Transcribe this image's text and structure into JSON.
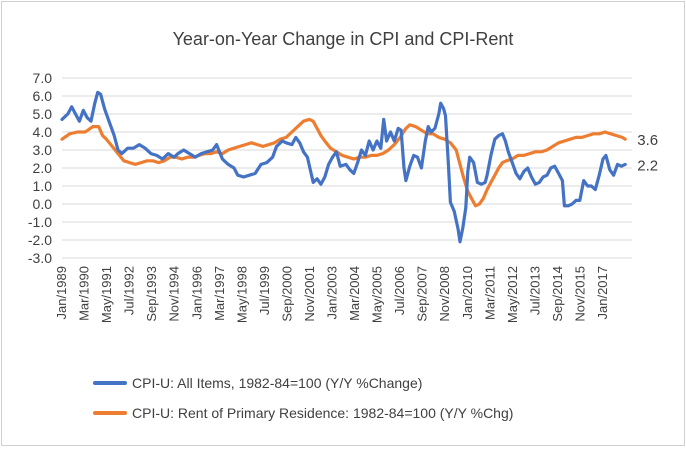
{
  "chart_data": {
    "type": "line",
    "title": "Year-on-Year Change in CPI and CPI-Rent",
    "xlabel": "",
    "ylabel": "",
    "ylim": [
      -3.0,
      7.0
    ],
    "yticks": [
      "7.0",
      "6.0",
      "5.0",
      "4.0",
      "3.0",
      "2.0",
      "1.0",
      "0.0",
      "-1.0",
      "-2.0",
      "-3.0"
    ],
    "xlim": [
      1989.0,
      2018.5
    ],
    "xticks": [
      {
        "label": "Jan/1989",
        "t": 1989.0
      },
      {
        "label": "Mar/1990",
        "t": 1990.17
      },
      {
        "label": "May/1991",
        "t": 1991.33
      },
      {
        "label": "Jul/1992",
        "t": 1992.5
      },
      {
        "label": "Sep/1993",
        "t": 1993.67
      },
      {
        "label": "Nov/1994",
        "t": 1994.83
      },
      {
        "label": "Jan/1996",
        "t": 1996.0
      },
      {
        "label": "Mar/1997",
        "t": 1997.17
      },
      {
        "label": "May/1998",
        "t": 1998.33
      },
      {
        "label": "Jul/1999",
        "t": 1999.5
      },
      {
        "label": "Sep/2000",
        "t": 2000.67
      },
      {
        "label": "Nov/2001",
        "t": 2001.83
      },
      {
        "label": "Jan/2003",
        "t": 2003.0
      },
      {
        "label": "Mar/2004",
        "t": 2004.17
      },
      {
        "label": "May/2005",
        "t": 2005.33
      },
      {
        "label": "Jul/2006",
        "t": 2006.5
      },
      {
        "label": "Sep/2007",
        "t": 2007.67
      },
      {
        "label": "Nov/2008",
        "t": 2008.83
      },
      {
        "label": "Jan/2010",
        "t": 2010.0
      },
      {
        "label": "Mar/2011",
        "t": 2011.17
      },
      {
        "label": "May/2012",
        "t": 2012.33
      },
      {
        "label": "Jul/2013",
        "t": 2013.5
      },
      {
        "label": "Sep/2014",
        "t": 2014.67
      },
      {
        "label": "Nov/2015",
        "t": 2015.83
      },
      {
        "label": "Jan/2017",
        "t": 2017.0
      }
    ],
    "grid": true,
    "legend_position": "bottom",
    "series": [
      {
        "name": "CPI-U: All Items, 1982-84=100 (Y/Y %Change)",
        "color": "#4472C4",
        "end_label": "2.2",
        "points": [
          [
            1989.0,
            4.7
          ],
          [
            1989.3,
            5.0
          ],
          [
            1989.5,
            5.4
          ],
          [
            1989.7,
            5.0
          ],
          [
            1989.9,
            4.6
          ],
          [
            1990.1,
            5.2
          ],
          [
            1990.3,
            4.8
          ],
          [
            1990.5,
            4.6
          ],
          [
            1990.7,
            5.6
          ],
          [
            1990.85,
            6.2
          ],
          [
            1991.0,
            6.1
          ],
          [
            1991.2,
            5.3
          ],
          [
            1991.3,
            5.0
          ],
          [
            1991.5,
            4.4
          ],
          [
            1991.7,
            3.8
          ],
          [
            1991.9,
            3.0
          ],
          [
            1992.1,
            2.8
          ],
          [
            1992.4,
            3.1
          ],
          [
            1992.7,
            3.1
          ],
          [
            1993.0,
            3.3
          ],
          [
            1993.3,
            3.1
          ],
          [
            1993.6,
            2.8
          ],
          [
            1993.9,
            2.7
          ],
          [
            1994.2,
            2.5
          ],
          [
            1994.5,
            2.8
          ],
          [
            1994.8,
            2.6
          ],
          [
            1995.0,
            2.8
          ],
          [
            1995.3,
            3.0
          ],
          [
            1995.6,
            2.8
          ],
          [
            1995.9,
            2.6
          ],
          [
            1996.2,
            2.8
          ],
          [
            1996.5,
            2.9
          ],
          [
            1996.8,
            3.0
          ],
          [
            1997.0,
            3.3
          ],
          [
            1997.3,
            2.5
          ],
          [
            1997.6,
            2.2
          ],
          [
            1997.9,
            2.0
          ],
          [
            1998.1,
            1.6
          ],
          [
            1998.4,
            1.5
          ],
          [
            1998.7,
            1.6
          ],
          [
            1999.0,
            1.7
          ],
          [
            1999.3,
            2.2
          ],
          [
            1999.6,
            2.3
          ],
          [
            1999.9,
            2.6
          ],
          [
            2000.1,
            3.2
          ],
          [
            2000.4,
            3.5
          ],
          [
            2000.6,
            3.4
          ],
          [
            2000.9,
            3.3
          ],
          [
            2001.1,
            3.7
          ],
          [
            2001.3,
            3.4
          ],
          [
            2001.5,
            2.9
          ],
          [
            2001.7,
            2.6
          ],
          [
            2001.85,
            1.9
          ],
          [
            2002.0,
            1.2
          ],
          [
            2002.2,
            1.4
          ],
          [
            2002.4,
            1.1
          ],
          [
            2002.6,
            1.5
          ],
          [
            2002.8,
            2.2
          ],
          [
            2003.0,
            2.6
          ],
          [
            2003.2,
            2.9
          ],
          [
            2003.4,
            2.1
          ],
          [
            2003.7,
            2.2
          ],
          [
            2003.9,
            1.9
          ],
          [
            2004.1,
            1.7
          ],
          [
            2004.3,
            2.3
          ],
          [
            2004.5,
            3.0
          ],
          [
            2004.7,
            2.7
          ],
          [
            2004.9,
            3.5
          ],
          [
            2005.1,
            3.0
          ],
          [
            2005.3,
            3.5
          ],
          [
            2005.5,
            3.1
          ],
          [
            2005.65,
            4.7
          ],
          [
            2005.8,
            3.5
          ],
          [
            2006.0,
            4.0
          ],
          [
            2006.2,
            3.5
          ],
          [
            2006.4,
            4.2
          ],
          [
            2006.55,
            4.1
          ],
          [
            2006.7,
            2.0
          ],
          [
            2006.8,
            1.3
          ],
          [
            2007.0,
            2.1
          ],
          [
            2007.2,
            2.7
          ],
          [
            2007.4,
            2.6
          ],
          [
            2007.6,
            2.0
          ],
          [
            2007.8,
            3.5
          ],
          [
            2007.95,
            4.3
          ],
          [
            2008.1,
            4.0
          ],
          [
            2008.3,
            4.2
          ],
          [
            2008.5,
            5.0
          ],
          [
            2008.6,
            5.6
          ],
          [
            2008.75,
            5.3
          ],
          [
            2008.85,
            4.9
          ],
          [
            2009.0,
            2.2
          ],
          [
            2009.1,
            0.1
          ],
          [
            2009.3,
            -0.4
          ],
          [
            2009.5,
            -1.4
          ],
          [
            2009.6,
            -2.1
          ],
          [
            2009.75,
            -1.3
          ],
          [
            2009.9,
            -0.2
          ],
          [
            2010.0,
            1.8
          ],
          [
            2010.1,
            2.6
          ],
          [
            2010.3,
            2.3
          ],
          [
            2010.5,
            1.2
          ],
          [
            2010.7,
            1.1
          ],
          [
            2010.9,
            1.2
          ],
          [
            2011.0,
            1.6
          ],
          [
            2011.2,
            2.7
          ],
          [
            2011.4,
            3.6
          ],
          [
            2011.6,
            3.8
          ],
          [
            2011.8,
            3.9
          ],
          [
            2011.95,
            3.5
          ],
          [
            2012.1,
            2.9
          ],
          [
            2012.3,
            2.3
          ],
          [
            2012.5,
            1.7
          ],
          [
            2012.7,
            1.4
          ],
          [
            2012.9,
            1.8
          ],
          [
            2013.1,
            2.0
          ],
          [
            2013.3,
            1.5
          ],
          [
            2013.5,
            1.1
          ],
          [
            2013.7,
            1.2
          ],
          [
            2013.9,
            1.5
          ],
          [
            2014.1,
            1.6
          ],
          [
            2014.3,
            2.0
          ],
          [
            2014.5,
            2.1
          ],
          [
            2014.7,
            1.7
          ],
          [
            2014.9,
            1.3
          ],
          [
            2015.0,
            -0.1
          ],
          [
            2015.2,
            -0.1
          ],
          [
            2015.4,
            0.0
          ],
          [
            2015.6,
            0.2
          ],
          [
            2015.8,
            0.2
          ],
          [
            2016.0,
            1.3
          ],
          [
            2016.2,
            1.0
          ],
          [
            2016.4,
            1.0
          ],
          [
            2016.6,
            0.8
          ],
          [
            2016.8,
            1.6
          ],
          [
            2017.0,
            2.5
          ],
          [
            2017.15,
            2.7
          ],
          [
            2017.35,
            1.9
          ],
          [
            2017.55,
            1.6
          ],
          [
            2017.75,
            2.2
          ],
          [
            2017.95,
            2.1
          ],
          [
            2018.15,
            2.2
          ]
        ]
      },
      {
        "name": "CPI-U: Rent of Primary Residence: 1982-84=100 (Y/Y %Chg)",
        "color": "#ED7D31",
        "end_label": "3.6",
        "points": [
          [
            1989.0,
            3.6
          ],
          [
            1989.4,
            3.9
          ],
          [
            1989.8,
            4.0
          ],
          [
            1990.2,
            4.0
          ],
          [
            1990.6,
            4.3
          ],
          [
            1990.9,
            4.3
          ],
          [
            1991.1,
            3.8
          ],
          [
            1991.3,
            3.6
          ],
          [
            1991.6,
            3.2
          ],
          [
            1991.9,
            2.8
          ],
          [
            1992.2,
            2.4
          ],
          [
            1992.5,
            2.3
          ],
          [
            1992.8,
            2.2
          ],
          [
            1993.1,
            2.3
          ],
          [
            1993.4,
            2.4
          ],
          [
            1993.7,
            2.4
          ],
          [
            1994.0,
            2.3
          ],
          [
            1994.3,
            2.4
          ],
          [
            1994.6,
            2.6
          ],
          [
            1994.9,
            2.6
          ],
          [
            1995.2,
            2.5
          ],
          [
            1995.5,
            2.6
          ],
          [
            1995.8,
            2.6
          ],
          [
            1996.1,
            2.7
          ],
          [
            1996.4,
            2.8
          ],
          [
            1996.7,
            2.8
          ],
          [
            1997.0,
            2.9
          ],
          [
            1997.3,
            2.8
          ],
          [
            1997.6,
            3.0
          ],
          [
            1997.9,
            3.1
          ],
          [
            1998.2,
            3.2
          ],
          [
            1998.5,
            3.3
          ],
          [
            1998.8,
            3.4
          ],
          [
            1999.1,
            3.3
          ],
          [
            1999.4,
            3.2
          ],
          [
            1999.7,
            3.3
          ],
          [
            2000.0,
            3.4
          ],
          [
            2000.3,
            3.6
          ],
          [
            2000.6,
            3.7
          ],
          [
            2000.9,
            4.0
          ],
          [
            2001.2,
            4.3
          ],
          [
            2001.5,
            4.6
          ],
          [
            2001.8,
            4.7
          ],
          [
            2002.0,
            4.6
          ],
          [
            2002.2,
            4.2
          ],
          [
            2002.4,
            3.8
          ],
          [
            2002.6,
            3.5
          ],
          [
            2002.9,
            3.1
          ],
          [
            2003.2,
            2.9
          ],
          [
            2003.5,
            2.7
          ],
          [
            2003.8,
            2.6
          ],
          [
            2004.1,
            2.5
          ],
          [
            2004.4,
            2.6
          ],
          [
            2004.7,
            2.6
          ],
          [
            2005.0,
            2.7
          ],
          [
            2005.3,
            2.7
          ],
          [
            2005.6,
            2.8
          ],
          [
            2005.9,
            3.0
          ],
          [
            2006.2,
            3.3
          ],
          [
            2006.5,
            3.7
          ],
          [
            2006.8,
            4.2
          ],
          [
            2007.0,
            4.4
          ],
          [
            2007.3,
            4.3
          ],
          [
            2007.6,
            4.1
          ],
          [
            2007.9,
            3.9
          ],
          [
            2008.2,
            3.9
          ],
          [
            2008.5,
            3.7
          ],
          [
            2008.8,
            3.6
          ],
          [
            2009.1,
            3.4
          ],
          [
            2009.4,
            3.0
          ],
          [
            2009.6,
            2.2
          ],
          [
            2009.8,
            1.4
          ],
          [
            2010.0,
            0.7
          ],
          [
            2010.2,
            0.3
          ],
          [
            2010.4,
            -0.1
          ],
          [
            2010.6,
            0.0
          ],
          [
            2010.8,
            0.3
          ],
          [
            2011.0,
            0.8
          ],
          [
            2011.2,
            1.2
          ],
          [
            2011.4,
            1.6
          ],
          [
            2011.6,
            2.0
          ],
          [
            2011.8,
            2.3
          ],
          [
            2012.0,
            2.4
          ],
          [
            2012.3,
            2.5
          ],
          [
            2012.6,
            2.7
          ],
          [
            2012.9,
            2.7
          ],
          [
            2013.2,
            2.8
          ],
          [
            2013.5,
            2.9
          ],
          [
            2013.8,
            2.9
          ],
          [
            2014.1,
            3.0
          ],
          [
            2014.4,
            3.2
          ],
          [
            2014.7,
            3.4
          ],
          [
            2015.0,
            3.5
          ],
          [
            2015.3,
            3.6
          ],
          [
            2015.6,
            3.7
          ],
          [
            2015.9,
            3.7
          ],
          [
            2016.2,
            3.8
          ],
          [
            2016.5,
            3.9
          ],
          [
            2016.8,
            3.9
          ],
          [
            2017.1,
            4.0
          ],
          [
            2017.4,
            3.9
          ],
          [
            2017.7,
            3.8
          ],
          [
            2018.0,
            3.7
          ],
          [
            2018.15,
            3.6
          ]
        ]
      }
    ]
  }
}
